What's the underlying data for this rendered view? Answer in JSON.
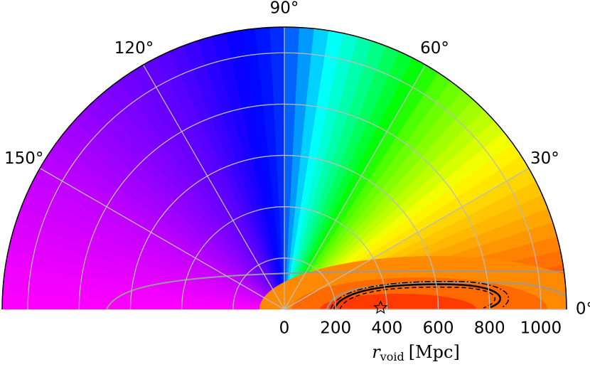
{
  "chart_data": {
    "type": "polar-contour",
    "rlim": [
      0,
      1100
    ],
    "thetalim": [
      0,
      180
    ],
    "rticks": [
      0,
      200,
      400,
      600,
      800,
      1000
    ],
    "thetaticks": [
      {
        "value": 0,
        "label": "0°"
      },
      {
        "value": 30,
        "label": "30°"
      },
      {
        "value": 60,
        "label": "60°"
      },
      {
        "value": 90,
        "label": "90°"
      },
      {
        "value": 120,
        "label": "120°"
      },
      {
        "value": 150,
        "label": "150°"
      }
    ],
    "grid": true,
    "xlabel": {
      "symbol": "r",
      "subscript": "void",
      "unit": "[Mpc]"
    },
    "marker": {
      "r": 375,
      "theta": 1,
      "color": "#000000"
    }
  }
}
